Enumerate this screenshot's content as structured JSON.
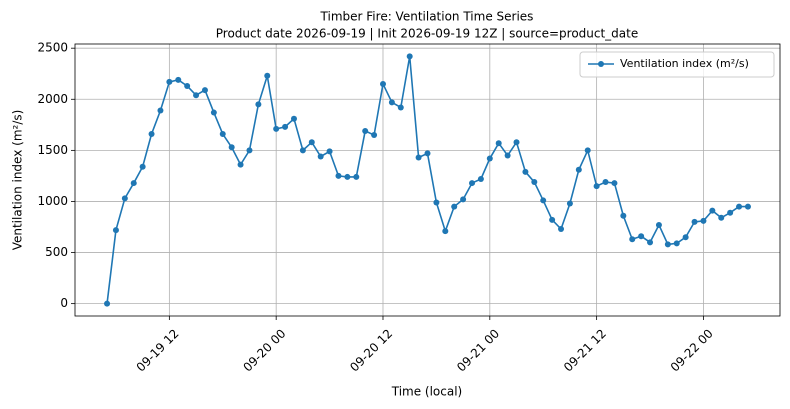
{
  "chart_data": {
    "type": "line",
    "title": "Timber Fire: Ventilation Time Series",
    "subtitle": "Product date 2026-09-19 | Init 2026-09-19 12Z | source=product_date",
    "x_label": "Time (local)",
    "y_label": "Ventilation index (m²/s)",
    "x": [
      "09-19 05",
      "09-19 06",
      "09-19 07",
      "09-19 08",
      "09-19 09",
      "09-19 10",
      "09-19 11",
      "09-19 12",
      "09-19 13",
      "09-19 14",
      "09-19 15",
      "09-19 16",
      "09-19 17",
      "09-19 18",
      "09-19 19",
      "09-19 20",
      "09-19 21",
      "09-19 22",
      "09-19 23",
      "09-20 00",
      "09-20 01",
      "09-20 02",
      "09-20 03",
      "09-20 04",
      "09-20 05",
      "09-20 06",
      "09-20 07",
      "09-20 08",
      "09-20 09",
      "09-20 10",
      "09-20 11",
      "09-20 12",
      "09-20 13",
      "09-20 14",
      "09-20 15",
      "09-20 16",
      "09-20 17",
      "09-20 18",
      "09-20 19",
      "09-20 20",
      "09-20 21",
      "09-20 22",
      "09-20 23",
      "09-21 00",
      "09-21 01",
      "09-21 02",
      "09-21 03",
      "09-21 04",
      "09-21 05",
      "09-21 06",
      "09-21 07",
      "09-21 08",
      "09-21 09",
      "09-21 10",
      "09-21 11",
      "09-21 12",
      "09-21 13",
      "09-21 14",
      "09-21 15",
      "09-21 16",
      "09-21 17",
      "09-21 18",
      "09-21 19",
      "09-21 20",
      "09-21 21",
      "09-21 22",
      "09-21 23",
      "09-22 00",
      "09-22 01",
      "09-22 02",
      "09-22 03",
      "09-22 04",
      "09-22 05"
    ],
    "series": [
      {
        "name": "Ventilation index (m²/s)",
        "color": "#1f77b4",
        "values": [
          0,
          720,
          1030,
          1180,
          1340,
          1660,
          1890,
          2170,
          2190,
          2130,
          2040,
          2090,
          1870,
          1660,
          1530,
          1360,
          1500,
          1950,
          2230,
          1710,
          1730,
          1810,
          1500,
          1580,
          1440,
          1490,
          1250,
          1240,
          1240,
          1690,
          1650,
          2150,
          1970,
          1920,
          2420,
          1430,
          1470,
          990,
          710,
          950,
          1020,
          1180,
          1220,
          1420,
          1570,
          1450,
          1580,
          1290,
          1190,
          1010,
          820,
          730,
          980,
          1310,
          1500,
          1150,
          1190,
          1180,
          860,
          630,
          660,
          600,
          770,
          580,
          590,
          650,
          800,
          810,
          910,
          840,
          890,
          950,
          950
        ]
      }
    ],
    "xlim": [
      "09-19 01:24",
      "09-22 08:36"
    ],
    "xticks": [
      "09-19 12",
      "09-20 00",
      "09-20 12",
      "09-21 00",
      "09-21 12",
      "09-22 00"
    ],
    "ylim": [
      -121,
      2541
    ],
    "yticks": [
      0,
      500,
      1000,
      1500,
      2000,
      2500
    ],
    "grid": true,
    "legend": "upper right"
  }
}
